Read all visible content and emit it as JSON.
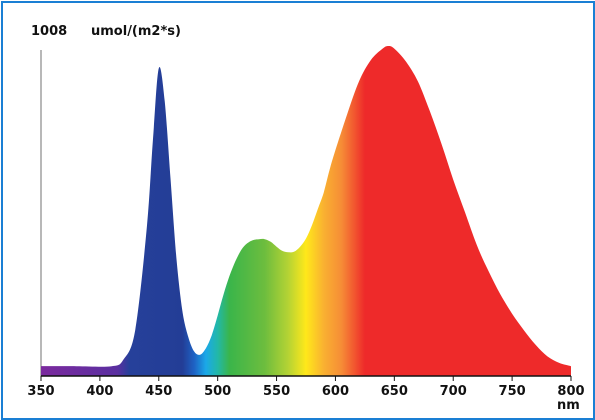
{
  "chart_data": {
    "type": "area",
    "title": "",
    "ylabel_value": "1008",
    "ylabel": "umol/(m2*s)",
    "xlabel": "nm",
    "xlim": [
      350,
      800
    ],
    "ylim": [
      0,
      1008
    ],
    "x_ticks": [
      "350",
      "400",
      "450",
      "500",
      "550",
      "600",
      "650",
      "700",
      "750",
      "800"
    ],
    "x": [
      350,
      380,
      410,
      420,
      430,
      440,
      445,
      450,
      455,
      460,
      465,
      470,
      475,
      480,
      485,
      490,
      495,
      500,
      505,
      510,
      515,
      520,
      525,
      530,
      535,
      540,
      545,
      550,
      555,
      560,
      565,
      570,
      575,
      580,
      585,
      590,
      595,
      600,
      610,
      620,
      630,
      640,
      645,
      650,
      660,
      670,
      680,
      690,
      700,
      710,
      720,
      730,
      740,
      750,
      760,
      770,
      780,
      790,
      800
    ],
    "y": [
      30,
      30,
      30,
      50,
      140,
      460,
      720,
      940,
      840,
      600,
      360,
      200,
      120,
      75,
      65,
      85,
      125,
      185,
      250,
      305,
      350,
      385,
      405,
      415,
      418,
      418,
      410,
      395,
      382,
      378,
      380,
      395,
      420,
      460,
      510,
      560,
      630,
      690,
      800,
      900,
      965,
      1000,
      1008,
      1000,
      960,
      900,
      810,
      710,
      600,
      500,
      400,
      320,
      250,
      190,
      140,
      95,
      60,
      40,
      30
    ],
    "fill_gradient": [
      {
        "nm": 350,
        "color": "#7b2a9e"
      },
      {
        "nm": 415,
        "color": "#5a2fa0"
      },
      {
        "nm": 425,
        "color": "#26409a"
      },
      {
        "nm": 470,
        "color": "#233d96"
      },
      {
        "nm": 480,
        "color": "#1e62c4"
      },
      {
        "nm": 490,
        "color": "#1ba8e8"
      },
      {
        "nm": 500,
        "color": "#22b8a8"
      },
      {
        "nm": 510,
        "color": "#3ab54a"
      },
      {
        "nm": 540,
        "color": "#6dbd3e"
      },
      {
        "nm": 560,
        "color": "#b5d334"
      },
      {
        "nm": 575,
        "color": "#ffe81a"
      },
      {
        "nm": 590,
        "color": "#f9b131"
      },
      {
        "nm": 605,
        "color": "#f68d36"
      },
      {
        "nm": 625,
        "color": "#ee2a2a"
      },
      {
        "nm": 800,
        "color": "#ee2a2a"
      }
    ]
  }
}
